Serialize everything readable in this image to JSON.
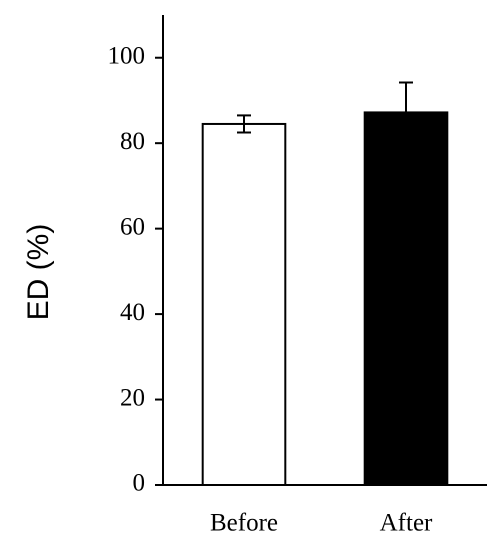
{
  "chart_data": {
    "type": "bar",
    "y_label": "ED (%)",
    "categories": [
      "Before",
      "After"
    ],
    "values": [
      84.5,
      87.2
    ],
    "errors": [
      2,
      7
    ],
    "colors": [
      "#ffffff",
      "#000000"
    ],
    "ylim": [
      0,
      110
    ],
    "yticks": [
      0,
      20,
      40,
      60,
      80,
      100
    ],
    "grid": false
  }
}
